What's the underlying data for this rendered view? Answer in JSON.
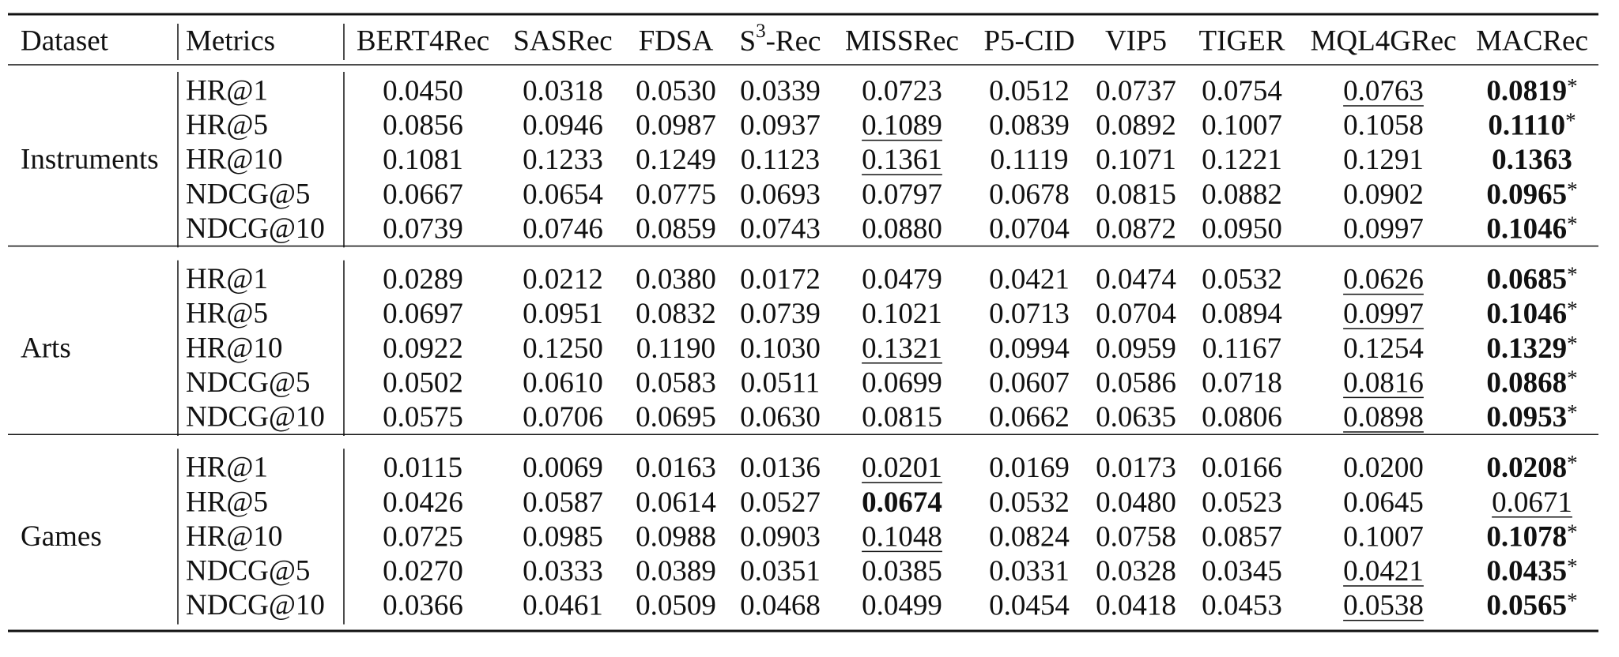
{
  "table": {
    "columns": [
      "Dataset",
      "Metrics",
      "BERT4Rec",
      "SASRec",
      "FDSA",
      {
        "text": "S",
        "sup": "3",
        "tail": "-Rec"
      },
      "MISSRec",
      "P5-CID",
      "VIP5",
      "TIGER",
      "MQL4GRec",
      "MACRec"
    ],
    "star_mark": "*",
    "groups": [
      {
        "dataset": "Instruments",
        "rows": [
          {
            "metric": "HR@1",
            "values": [
              "0.0450",
              "0.0318",
              "0.0530",
              "0.0339",
              "0.0723",
              "0.0512",
              "0.0737",
              "0.0754",
              "0.0763",
              "0.0819"
            ],
            "bold": 9,
            "underline": 8,
            "star": true
          },
          {
            "metric": "HR@5",
            "values": [
              "0.0856",
              "0.0946",
              "0.0987",
              "0.0937",
              "0.1089",
              "0.0839",
              "0.0892",
              "0.1007",
              "0.1058",
              "0.1110"
            ],
            "bold": 9,
            "underline": 4,
            "star": true
          },
          {
            "metric": "HR@10",
            "values": [
              "0.1081",
              "0.1233",
              "0.1249",
              "0.1123",
              "0.1361",
              "0.1119",
              "0.1071",
              "0.1221",
              "0.1291",
              "0.1363"
            ],
            "bold": 9,
            "underline": 4,
            "star": false
          },
          {
            "metric": "NDCG@5",
            "values": [
              "0.0667",
              "0.0654",
              "0.0775",
              "0.0693",
              "0.0797",
              "0.0678",
              "0.0815",
              "0.0882",
              "0.0902",
              "0.0965"
            ],
            "bold": 9,
            "star": true
          },
          {
            "metric": "NDCG@10",
            "values": [
              "0.0739",
              "0.0746",
              "0.0859",
              "0.0743",
              "0.0880",
              "0.0704",
              "0.0872",
              "0.0950",
              "0.0997",
              "0.1046"
            ],
            "bold": 9,
            "star": true
          }
        ]
      },
      {
        "dataset": "Arts",
        "rows": [
          {
            "metric": "HR@1",
            "values": [
              "0.0289",
              "0.0212",
              "0.0380",
              "0.0172",
              "0.0479",
              "0.0421",
              "0.0474",
              "0.0532",
              "0.0626",
              "0.0685"
            ],
            "bold": 9,
            "underline": 8,
            "star": true
          },
          {
            "metric": "HR@5",
            "values": [
              "0.0697",
              "0.0951",
              "0.0832",
              "0.0739",
              "0.1021",
              "0.0713",
              "0.0704",
              "0.0894",
              "0.0997",
              "0.1046"
            ],
            "bold": 9,
            "underline": 8,
            "star": true
          },
          {
            "metric": "HR@10",
            "values": [
              "0.0922",
              "0.1250",
              "0.1190",
              "0.1030",
              "0.1321",
              "0.0994",
              "0.0959",
              "0.1167",
              "0.1254",
              "0.1329"
            ],
            "bold": 9,
            "underline": 4,
            "star": true
          },
          {
            "metric": "NDCG@5",
            "values": [
              "0.0502",
              "0.0610",
              "0.0583",
              "0.0511",
              "0.0699",
              "0.0607",
              "0.0586",
              "0.0718",
              "0.0816",
              "0.0868"
            ],
            "bold": 9,
            "underline": 8,
            "star": true
          },
          {
            "metric": "NDCG@10",
            "values": [
              "0.0575",
              "0.0706",
              "0.0695",
              "0.0630",
              "0.0815",
              "0.0662",
              "0.0635",
              "0.0806",
              "0.0898",
              "0.0953"
            ],
            "bold": 9,
            "underline": 8,
            "star": true
          }
        ]
      },
      {
        "dataset": "Games",
        "rows": [
          {
            "metric": "HR@1",
            "values": [
              "0.0115",
              "0.0069",
              "0.0163",
              "0.0136",
              "0.0201",
              "0.0169",
              "0.0173",
              "0.0166",
              "0.0200",
              "0.0208"
            ],
            "bold": 9,
            "underline": 4,
            "star": true
          },
          {
            "metric": "HR@5",
            "values": [
              "0.0426",
              "0.0587",
              "0.0614",
              "0.0527",
              "0.0674",
              "0.0532",
              "0.0480",
              "0.0523",
              "0.0645",
              "0.0671"
            ],
            "bold": 4,
            "underline": 9,
            "star": false
          },
          {
            "metric": "HR@10",
            "values": [
              "0.0725",
              "0.0985",
              "0.0988",
              "0.0903",
              "0.1048",
              "0.0824",
              "0.0758",
              "0.0857",
              "0.1007",
              "0.1078"
            ],
            "bold": 9,
            "underline": 4,
            "star": true
          },
          {
            "metric": "NDCG@5",
            "values": [
              "0.0270",
              "0.0333",
              "0.0389",
              "0.0351",
              "0.0385",
              "0.0331",
              "0.0328",
              "0.0345",
              "0.0421",
              "0.0435"
            ],
            "bold": 9,
            "underline": 8,
            "star": true
          },
          {
            "metric": "NDCG@10",
            "values": [
              "0.0366",
              "0.0461",
              "0.0509",
              "0.0468",
              "0.0499",
              "0.0454",
              "0.0418",
              "0.0453",
              "0.0538",
              "0.0565"
            ],
            "bold": 9,
            "underline": 8,
            "star": true
          }
        ]
      }
    ]
  }
}
